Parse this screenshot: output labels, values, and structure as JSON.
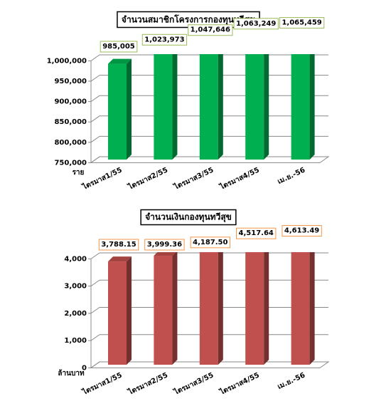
{
  "chart_data": [
    {
      "type": "bar",
      "title": "จำนวนสมาชิกโครงการกองทุนทวีสุข",
      "y_label": "ราย",
      "categories": [
        "ไตรมาส1/55",
        "ไตรมาส2/55",
        "ไตรมาส3/55",
        "ไตรมาส4/55",
        "เม.ย.-56"
      ],
      "values": [
        985005,
        1023973,
        1047646,
        1063249,
        1065459
      ],
      "value_labels": [
        "985,005",
        "1,023,973",
        "1,047,646",
        "1,063,249",
        "1,065,459"
      ],
      "color": "#00b050",
      "label_border_color": "#9bbb59",
      "ylim": [
        750000,
        1000000
      ],
      "yticks": [
        {
          "value": 750000,
          "label": "750,000"
        },
        {
          "value": 800000,
          "label": "800,000"
        },
        {
          "value": 850000,
          "label": "850,000"
        },
        {
          "value": 900000,
          "label": "900,000"
        },
        {
          "value": 950000,
          "label": "950,000"
        },
        {
          "value": 1000000,
          "label": "1,000,000"
        }
      ],
      "grid": true
    },
    {
      "type": "bar",
      "title": "จำนวนเงินกองทุนทวีสุข",
      "y_label": "ล้านบาท",
      "categories": [
        "ไตรมาส1/55",
        "ไตรมาส2/55",
        "ไตรมาส3/55",
        "ไตรมาส4/55",
        "เม.ย.-56"
      ],
      "values": [
        3788.15,
        3999.36,
        4187.5,
        4517.64,
        4613.49
      ],
      "value_labels": [
        "3,788.15",
        "3,999.36",
        "4,187.50",
        "4,517.64",
        "4,613.49"
      ],
      "color": "#c0504d",
      "label_border_color": "#f79646",
      "ylim": [
        0,
        4000
      ],
      "yticks": [
        0,
        {
          "value": 1000,
          "label": "1,000"
        },
        {
          "value": 2000,
          "label": "2,000"
        },
        {
          "value": 3000,
          "label": "3,000"
        },
        {
          "value": 4000,
          "label": "4,000"
        }
      ],
      "grid": true
    }
  ]
}
